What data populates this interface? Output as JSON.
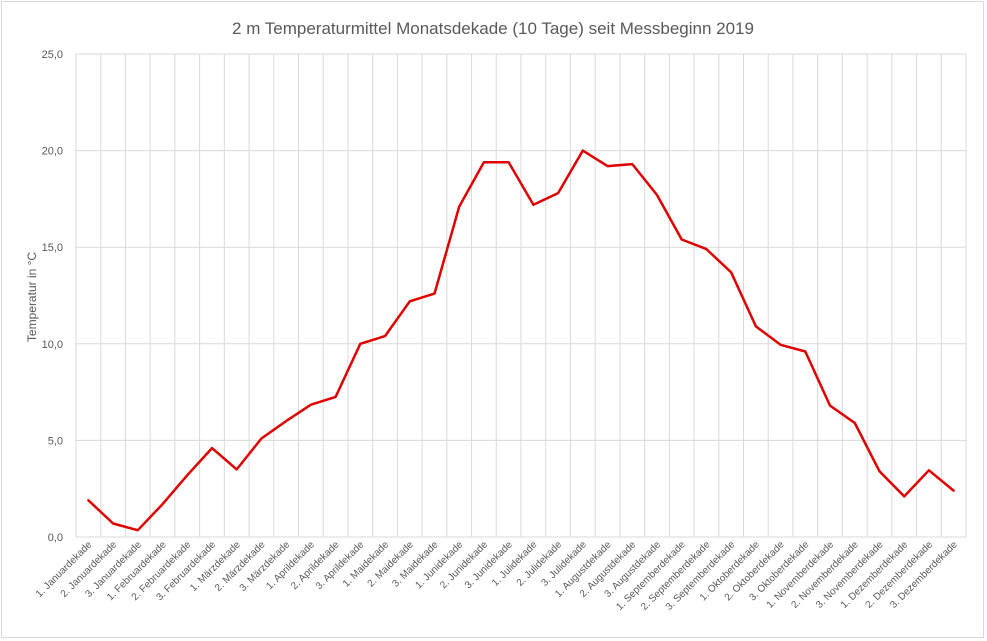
{
  "chart_data": {
    "type": "line",
    "title": "2 m  Temperaturmittel Monatsdekade (10 Tage) seit Messbeginn 2019",
    "xlabel": "",
    "ylabel": "Temperatur in °C",
    "ylim": [
      0,
      25
    ],
    "yticks": [
      "0,0",
      "5,0",
      "10,0",
      "15,0",
      "20,0",
      "25,0"
    ],
    "grid": true,
    "legend": "none",
    "categories": [
      "1. Januardekade",
      "2. Januardekade",
      "3. Januardekade",
      "1. Februardekade",
      "2. Februardekade",
      "3. Februardekade",
      "1. Märzdekade",
      "2. Märzdekade",
      "3. Märzdekade",
      "1. Aprildekade",
      "2. Aprildekade",
      "3. Aprildekade",
      "1. Maidekade",
      "2. Maidekade",
      "3. Maidekade",
      "1. Junidekade",
      "2. Junidekade",
      "3. Junidekade",
      "1. Julidekade",
      "2. Julidekade",
      "3. Julidekade",
      "1. Augustdekade",
      "2. Augustdekade",
      "3. Augustdekade",
      "1. Septemberdekade",
      "2. Septemberdekade",
      "3. Septemberdekade",
      "1. Oktoberdekade",
      "2. Oktoberdekade",
      "3. Oktoberdekade",
      "1. Novemberdekade",
      "2. Novemberdekade",
      "3. Novemberdekade",
      "1. Dezemberdekade",
      "2. Dezemberdekade",
      "3. Dezemberdekade"
    ],
    "series": [
      {
        "values": [
          1.9,
          0.7,
          0.35,
          1.7,
          3.2,
          4.6,
          3.5,
          5.1,
          6.0,
          6.85,
          7.25,
          10.0,
          10.4,
          12.2,
          12.6,
          17.1,
          19.4,
          19.4,
          17.2,
          17.8,
          20.0,
          19.2,
          19.3,
          17.7,
          15.4,
          14.9,
          13.7,
          10.9,
          9.95,
          9.6,
          6.8,
          5.9,
          3.4,
          2.1,
          3.45,
          2.4
        ],
        "color": "#e00000"
      }
    ],
    "colors": {
      "grid": "#d9d9d9",
      "text": "#595959",
      "line": "#e00000"
    }
  }
}
